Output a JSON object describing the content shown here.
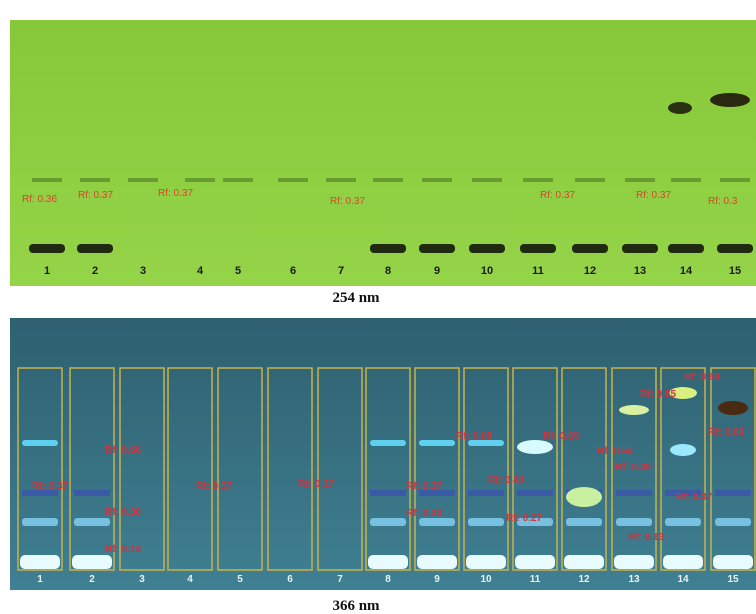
{
  "plates": [
    {
      "caption": "254 nm",
      "lanes": [
        "1",
        "2",
        "3",
        "4",
        "5",
        "6",
        "7",
        "8",
        "9",
        "10",
        "11",
        "12",
        "13",
        "14",
        "15"
      ],
      "rf_labels": [
        "Rf: 0.36",
        "Rf: 0.37",
        "Rf: 0.37",
        "Rf: 0.37",
        "Rf: 0.37",
        "Rf: 0.37",
        "Rf: 0.3"
      ]
    },
    {
      "caption": "366 nm",
      "lanes": [
        "1",
        "2",
        "3",
        "4",
        "5",
        "6",
        "7",
        "8",
        "9",
        "10",
        "11",
        "12",
        "13",
        "14",
        "15"
      ],
      "rf_labels": [
        "Rf: 0.37",
        "Rf: 0.66",
        "Rf: 0.30",
        "Rf: 0.13",
        "Rf: 0.37",
        "Rf: 0.37",
        "Rf: 0.37",
        "Rf: 0.30",
        "Rf: 0.68",
        "Rf: 0.40",
        "Rf: 0.27",
        "Rf: 0.69",
        "Rf: 0.54",
        "Rf: 0.48",
        "Rf: 0.13",
        "Rf: 0.85",
        "Rf: 0.88",
        "Rf: 0.66",
        "Rf: 0.37"
      ]
    }
  ]
}
